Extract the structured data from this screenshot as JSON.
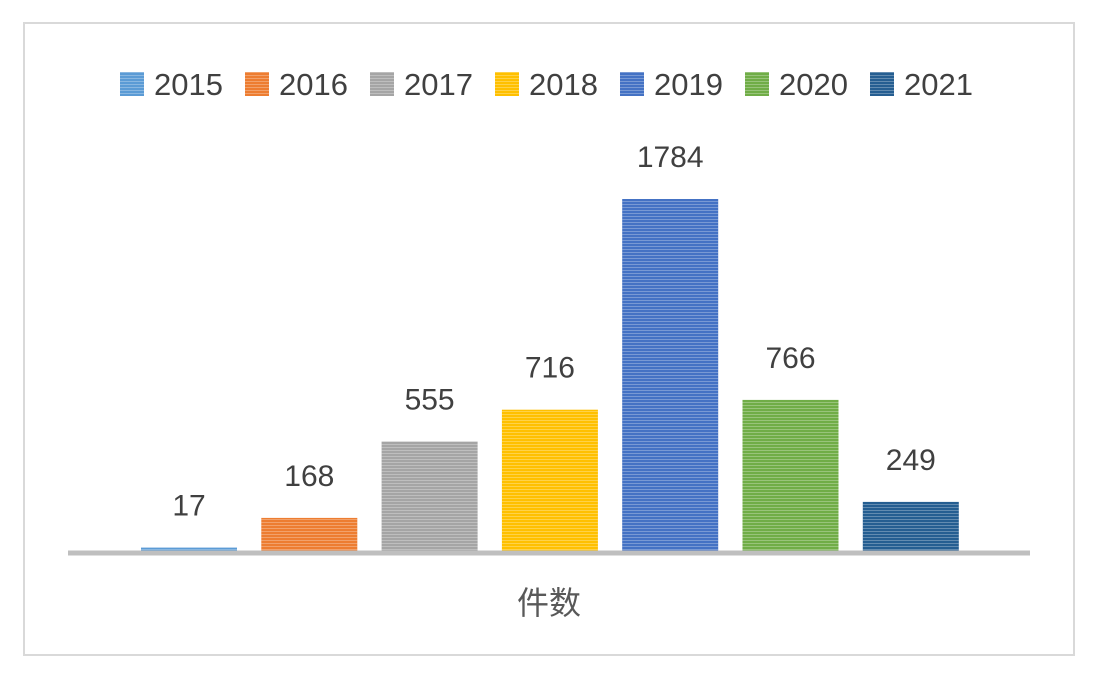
{
  "chart_data": {
    "type": "bar",
    "title": "",
    "xlabel": "件数",
    "ylabel": "",
    "categories": [
      "件数"
    ],
    "ylim": [
      0,
      1784
    ],
    "grid": false,
    "legend_position": "top",
    "series": [
      {
        "name": "2015",
        "values": [
          17
        ],
        "color": "#5b9bd5"
      },
      {
        "name": "2016",
        "values": [
          168
        ],
        "color": "#ed7d31"
      },
      {
        "name": "2017",
        "values": [
          555
        ],
        "color": "#a5a5a5"
      },
      {
        "name": "2018",
        "values": [
          716
        ],
        "color": "#ffc000"
      },
      {
        "name": "2019",
        "values": [
          1784
        ],
        "color": "#4472c4"
      },
      {
        "name": "2020",
        "values": [
          766
        ],
        "color": "#70ad47"
      },
      {
        "name": "2021",
        "values": [
          249
        ],
        "color": "#255e91"
      }
    ]
  }
}
